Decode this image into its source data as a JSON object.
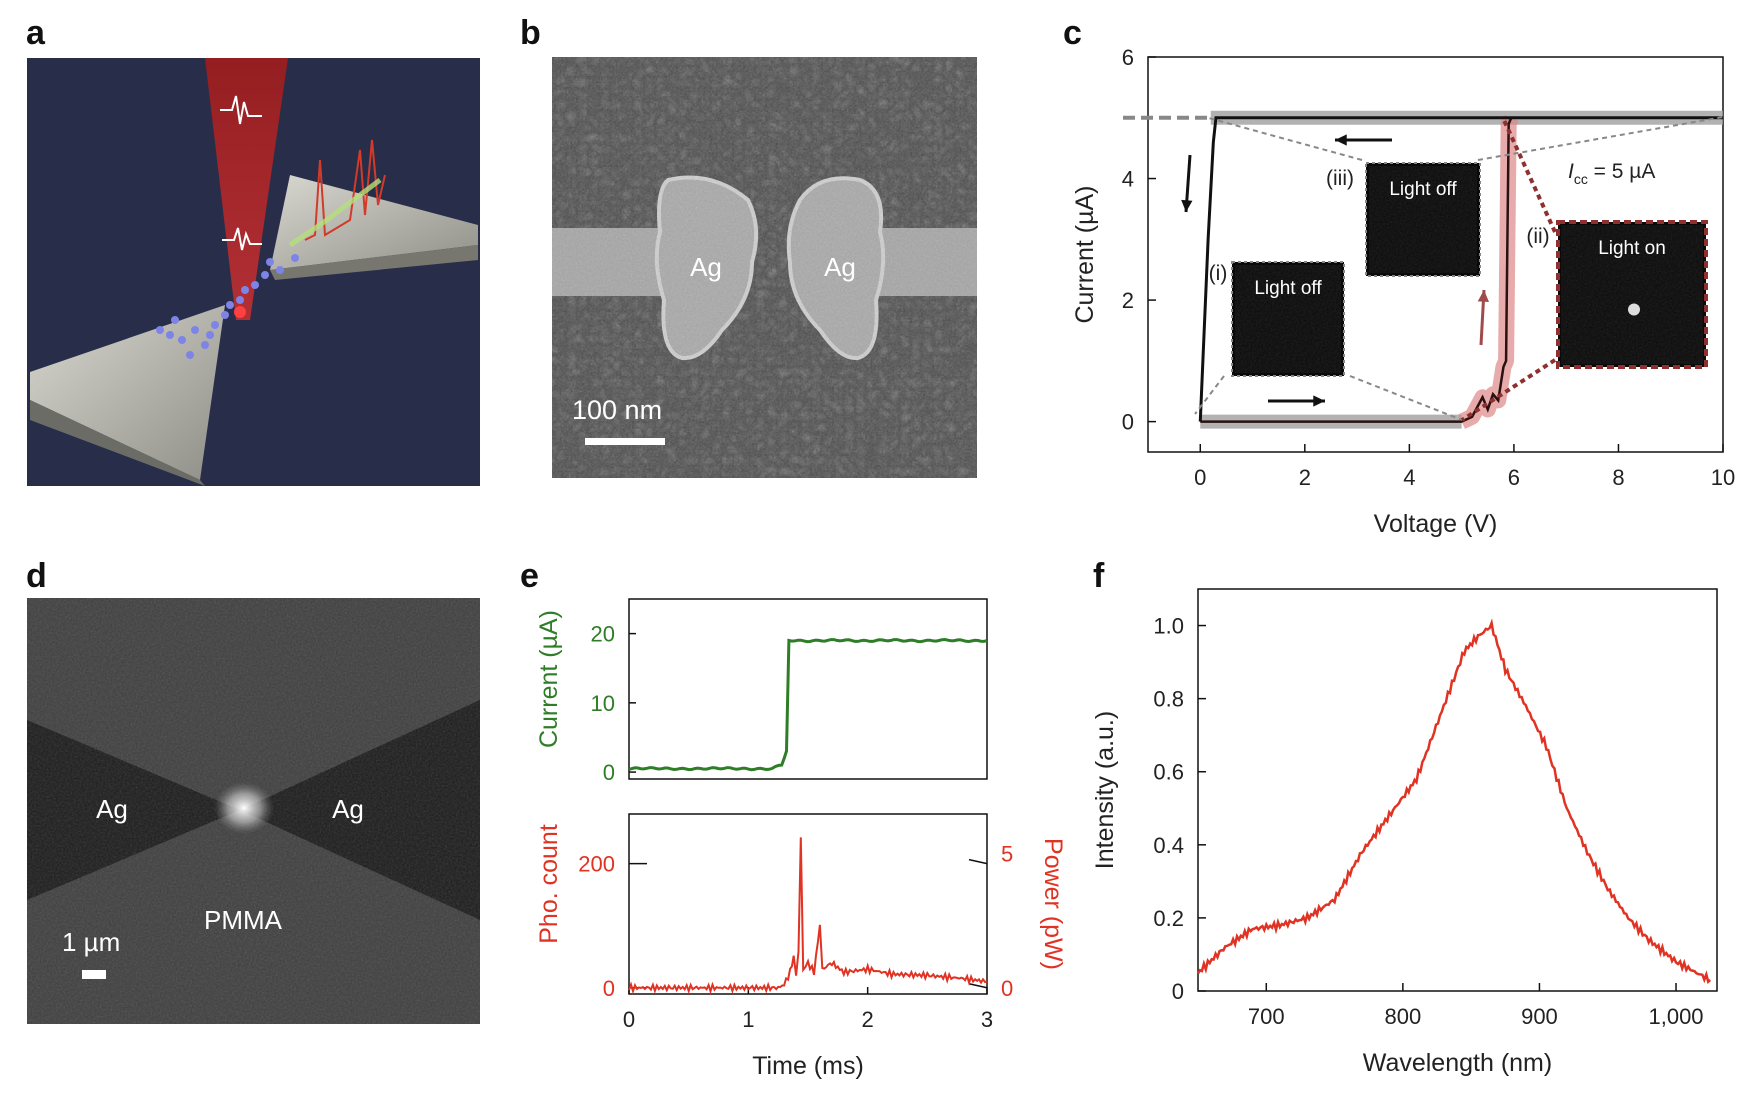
{
  "panels": {
    "a": {
      "label": "a"
    },
    "b": {
      "label": "b",
      "left_label": "Ag",
      "right_label": "Ag",
      "scalebar": "100 nm"
    },
    "c": {
      "label": "c"
    },
    "d": {
      "label": "d",
      "left_label": "Ag",
      "right_label": "Ag",
      "bottom_label": "PMMA",
      "scalebar": "1 µm"
    },
    "e": {
      "label": "e"
    },
    "f": {
      "label": "f"
    }
  },
  "colors": {
    "green": "#2e7d27",
    "red": "#e03323",
    "dark_red": "#8e3030",
    "gray": "#a0a0a0",
    "illustration_bg": "#282e4a"
  },
  "icons": {
    "panel_a": "bowtie-antenna-illustration",
    "arrows": "direction-arrow-icon"
  },
  "chart_data": [
    {
      "id": "c",
      "type": "line",
      "xlabel": "Voltage (V)",
      "ylabel": "Current (µA)",
      "xlim": [
        -1,
        10
      ],
      "ylim": [
        -0.5,
        6
      ],
      "xticks": [
        "0",
        "2",
        "4",
        "6",
        "8",
        "10"
      ],
      "yticks": [
        "0",
        "2",
        "4",
        "6"
      ],
      "compliance_label": "I",
      "compliance_sub": "cc",
      "compliance_value": " = 5 µA",
      "compliance_current": 5,
      "series": [
        {
          "points": [
            [
              0,
              0
            ],
            [
              5,
              0
            ],
            [
              5.2,
              0.08
            ],
            [
              5.4,
              0.4
            ],
            [
              5.5,
              0.2
            ],
            [
              5.6,
              0.45
            ],
            [
              5.7,
              0.35
            ],
            [
              5.8,
              0.9
            ],
            [
              5.85,
              1.0
            ],
            [
              5.9,
              4.9
            ],
            [
              5.95,
              5.0
            ],
            [
              10,
              5.0
            ]
          ]
        },
        {
          "points": [
            [
              10,
              5.0
            ],
            [
              0.3,
              5.0
            ],
            [
              0.25,
              4.6
            ],
            [
              0.15,
              3.0
            ],
            [
              0.05,
              1.0
            ],
            [
              0,
              0
            ]
          ]
        }
      ],
      "points_labels": [
        "(i)",
        "(ii)",
        "(iii)"
      ],
      "insets": [
        "Light off",
        "Light on",
        "Light off"
      ]
    },
    {
      "id": "e-top",
      "type": "line",
      "ylabel": "Current (µA)",
      "xlim": [
        0,
        3
      ],
      "ylim": [
        -1,
        25
      ],
      "yticks": [
        "0",
        "10",
        "20"
      ],
      "series": [
        {
          "points": [
            [
              0,
              0.5
            ],
            [
              1.2,
              0.5
            ],
            [
              1.28,
              1
            ],
            [
              1.32,
              3
            ],
            [
              1.34,
              19
            ],
            [
              3,
              19
            ]
          ]
        }
      ]
    },
    {
      "id": "e-bottom",
      "type": "line",
      "xlabel": "Time (ms)",
      "ylabel": "Pho. count",
      "ylabel_right": "Power (pW)",
      "xlim": [
        0,
        3
      ],
      "ylim": [
        -10,
        280
      ],
      "yticks": [
        "0",
        "200"
      ],
      "yticks_right": [
        "0",
        "5"
      ],
      "xticks": [
        "0",
        "1",
        "2",
        "3"
      ],
      "series": [
        {
          "points": [
            [
              0,
              0
            ],
            [
              1.25,
              0
            ],
            [
              1.3,
              5
            ],
            [
              1.35,
              25
            ],
            [
              1.38,
              50
            ],
            [
              1.4,
              20
            ],
            [
              1.42,
              60
            ],
            [
              1.44,
              240
            ],
            [
              1.46,
              30
            ],
            [
              1.5,
              40
            ],
            [
              1.55,
              25
            ],
            [
              1.6,
              100
            ],
            [
              1.62,
              30
            ],
            [
              1.7,
              40
            ],
            [
              1.8,
              25
            ],
            [
              2.0,
              30
            ],
            [
              2.2,
              22
            ],
            [
              2.5,
              20
            ],
            [
              2.8,
              15
            ],
            [
              3,
              10
            ]
          ]
        }
      ]
    },
    {
      "id": "f",
      "type": "line",
      "xlabel": "Wavelength (nm)",
      "ylabel": "Intensity (a.u.)",
      "xlim": [
        650,
        1030
      ],
      "ylim": [
        0,
        1.1
      ],
      "xticks": [
        "700",
        "800",
        "900",
        "1,000"
      ],
      "yticks": [
        "0",
        "0.2",
        "0.4",
        "0.6",
        "0.8",
        "1.0"
      ],
      "series": [
        {
          "points": [
            [
              650,
              0.05
            ],
            [
              670,
              0.12
            ],
            [
              690,
              0.17
            ],
            [
              710,
              0.18
            ],
            [
              730,
              0.2
            ],
            [
              750,
              0.25
            ],
            [
              770,
              0.38
            ],
            [
              790,
              0.48
            ],
            [
              810,
              0.58
            ],
            [
              830,
              0.78
            ],
            [
              845,
              0.93
            ],
            [
              855,
              0.97
            ],
            [
              865,
              1.0
            ],
            [
              875,
              0.88
            ],
            [
              890,
              0.78
            ],
            [
              905,
              0.67
            ],
            [
              920,
              0.5
            ],
            [
              935,
              0.38
            ],
            [
              950,
              0.28
            ],
            [
              965,
              0.2
            ],
            [
              980,
              0.14
            ],
            [
              1000,
              0.08
            ],
            [
              1015,
              0.05
            ],
            [
              1025,
              0.03
            ]
          ]
        }
      ]
    }
  ]
}
